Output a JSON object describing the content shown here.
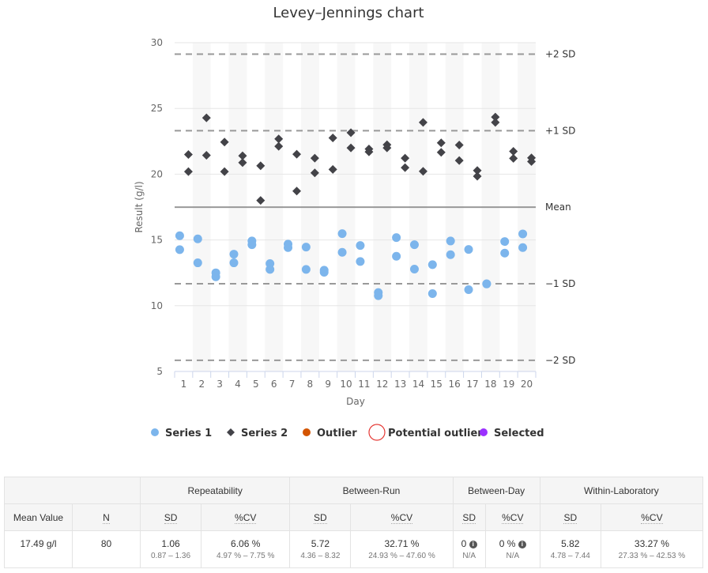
{
  "chart_data": {
    "type": "scatter",
    "title": "Levey–Jennings chart",
    "xlabel": "Day",
    "ylabel": "Result (g/l)",
    "ylim": [
      5,
      30
    ],
    "yticks": [
      5,
      10,
      15,
      20,
      25,
      30
    ],
    "x": [
      1,
      2,
      3,
      4,
      5,
      6,
      7,
      8,
      9,
      10,
      11,
      12,
      13,
      14,
      15,
      16,
      17,
      18,
      19,
      20
    ],
    "reference_lines": [
      {
        "label": "+2 SD",
        "value": 29.13,
        "style": "dashed"
      },
      {
        "label": "+1 SD",
        "value": 23.31,
        "style": "dashed"
      },
      {
        "label": "Mean",
        "value": 17.49,
        "style": "solid"
      },
      {
        "label": "-1 SD",
        "value": 11.67,
        "style": "dashed"
      },
      {
        "label": "-2 SD",
        "value": 5.85,
        "style": "dashed"
      }
    ],
    "series": [
      {
        "name": "Series 1",
        "marker": "circle",
        "color": "#7cb5ec",
        "values": [
          [
            15.32,
            14.26
          ],
          [
            15.08,
            13.26
          ],
          [
            12.5,
            12.2
          ],
          [
            13.92,
            13.26
          ],
          [
            14.92,
            14.64
          ],
          [
            13.2,
            12.76
          ],
          [
            14.68,
            14.42
          ],
          [
            14.46,
            12.76
          ],
          [
            12.7,
            12.54
          ],
          [
            15.48,
            14.06
          ],
          [
            14.58,
            13.36
          ],
          [
            11.0,
            10.76
          ],
          [
            15.18,
            13.76
          ],
          [
            14.64,
            12.78
          ],
          [
            13.12,
            10.92
          ],
          [
            14.92,
            13.88
          ],
          [
            14.28,
            11.22
          ],
          [
            11.66,
            11.66
          ],
          [
            14.88,
            14.0
          ],
          [
            15.46,
            14.42
          ]
        ]
      },
      {
        "name": "Series 2",
        "marker": "diamond",
        "color": "#434348",
        "values": [
          [
            21.5,
            20.2
          ],
          [
            24.28,
            21.44
          ],
          [
            22.44,
            20.2
          ],
          [
            21.4,
            20.88
          ],
          [
            20.64,
            18.0
          ],
          [
            22.68,
            22.12
          ],
          [
            21.52,
            18.72
          ],
          [
            21.22,
            20.1
          ],
          [
            22.76,
            20.36
          ],
          [
            23.16,
            22.0
          ],
          [
            21.92,
            21.7
          ],
          [
            22.24,
            22.0
          ],
          [
            21.22,
            20.5
          ],
          [
            23.94,
            20.22
          ],
          [
            22.38,
            21.66
          ],
          [
            22.22,
            21.04
          ],
          [
            20.28,
            19.84
          ],
          [
            24.34,
            23.94
          ],
          [
            21.74,
            21.2
          ],
          [
            21.24,
            20.96
          ]
        ]
      }
    ],
    "legend": {
      "placement": "bottom",
      "items": [
        {
          "label": "Series 1",
          "marker": "circle",
          "color": "#7cb5ec"
        },
        {
          "label": "Series 2",
          "marker": "diamond",
          "color": "#434348"
        },
        {
          "label": "Outlier",
          "marker": "circle",
          "color": "#d35400"
        },
        {
          "label": "Potential outlier",
          "marker": "ring",
          "color": "#e53935"
        },
        {
          "label": "Selected",
          "marker": "circle",
          "color": "#9b30ff"
        }
      ]
    }
  },
  "table": {
    "groups": [
      "Repeatability",
      "Between-Run",
      "Between-Day",
      "Within-Laboratory"
    ],
    "headers": {
      "mean": "Mean Value",
      "n": "N",
      "sd": "SD",
      "cv": "%CV"
    },
    "row": {
      "mean": "17.49 g/l",
      "n": "80",
      "rep_sd": "1.06",
      "rep_sd_ci": "0.87 – 1.36",
      "rep_cv": "6.06 %",
      "rep_cv_ci": "4.97 % – 7.75 %",
      "br_sd": "5.72",
      "br_sd_ci": "4.36 – 8.32",
      "br_cv": "32.71 %",
      "br_cv_ci": "24.93 % – 47.60 %",
      "bd_sd": "0",
      "bd_sd_ci": "N/A",
      "bd_cv": "0 %",
      "bd_cv_ci": "N/A",
      "wl_sd": "5.82",
      "wl_sd_ci": "4.78 – 7.44",
      "wl_cv": "33.27 %",
      "wl_cv_ci": "27.33 % – 42.53 %"
    }
  }
}
